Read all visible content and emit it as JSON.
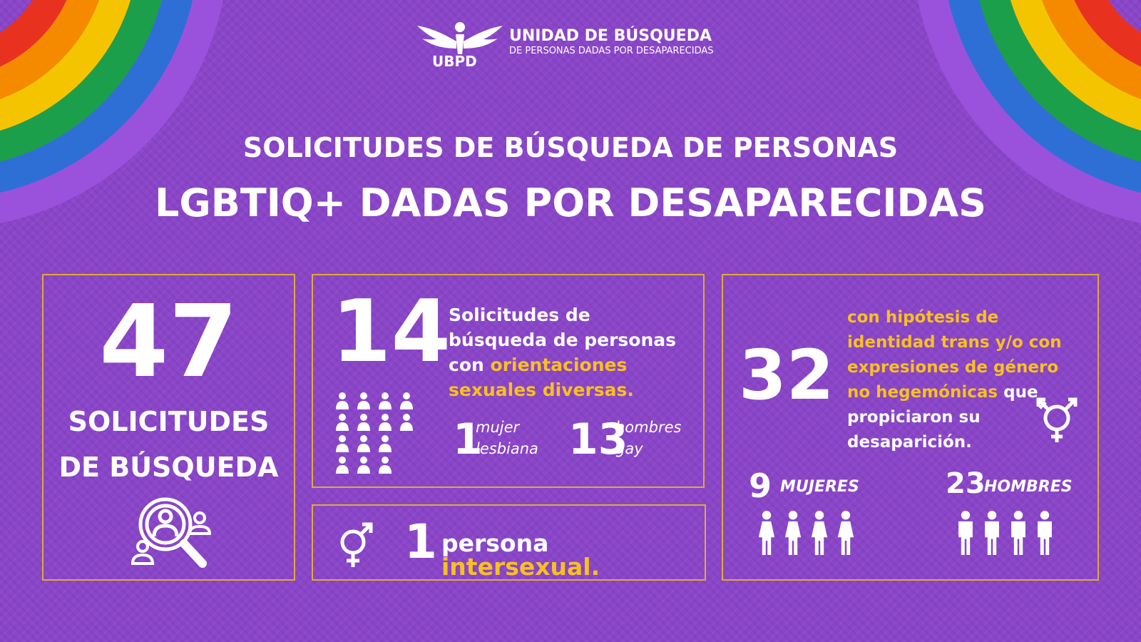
{
  "header": {
    "logo_abbr": "UBPD",
    "org_name": "UNIDAD DE BÚSQUEDA",
    "org_subtitle": "DE PERSONAS DADAS POR DESAPARECIDAS"
  },
  "title": {
    "line1": "SOLICITUDES DE BÚSQUEDA DE PERSONAS",
    "line2": "LGBTIQ+ DADAS POR DESAPARECIDAS"
  },
  "total": {
    "number": 47,
    "label_line1": "SOLICITUDES",
    "label_line2": "DE BÚSQUEDA"
  },
  "orientation": {
    "number": 14,
    "text": "Solicitudes de búsqueda de personas con",
    "highlight": "orientaciones sexuales diversas.",
    "breakdown": [
      {
        "number": 1,
        "label": "mujer lesbiana"
      },
      {
        "number": 13,
        "label": "hombres gay"
      }
    ]
  },
  "intersex": {
    "number": 1,
    "text": "persona",
    "highlight": "intersexual."
  },
  "identity": {
    "number": 32,
    "highlight": "con hipótesis de identidad trans y/o con expresiones de género no hegemónicas",
    "text": "que propiciaron su desaparición.",
    "breakdown": [
      {
        "number": 9,
        "label": "MUJERES"
      },
      {
        "number": 23,
        "label": "HOMBRES"
      }
    ]
  }
}
